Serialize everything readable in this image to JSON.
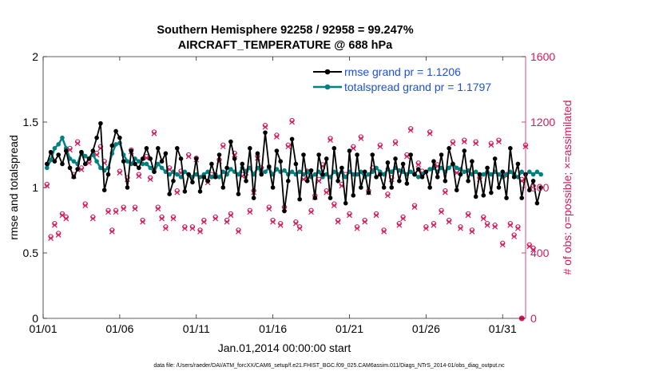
{
  "chart_data": {
    "type": "line",
    "title": "Southern Hemisphere 92258 / 92958 = 99.247%",
    "subtitle": "AIRCRAFT_TEMPERATURE @ 688 hPa",
    "xlabel": "Jan.01,2014 00:00:00 start",
    "ylabel_left": "rmse and totalspread",
    "ylabel_right": "# of obs: o=possible; ×=assimilated",
    "footnote": "data file: /Users/raeder/DAI/ATM_forcXX/CAM6_setup/f.e21.FHIST_BGC.f09_025.CAM6assim.011/Diags_NTrS_2014-01/obs_diag_output.nc",
    "x_ticks": [
      "01/01",
      "01/06",
      "01/11",
      "01/16",
      "01/21",
      "01/26",
      "01/31"
    ],
    "x_tick_days": [
      0,
      5,
      10,
      15,
      20,
      25,
      30
    ],
    "xlim": [
      0,
      31.5
    ],
    "ylim_left": [
      0,
      2
    ],
    "y_ticks_left": [
      "0",
      "0.5",
      "1",
      "1.5",
      "2"
    ],
    "ylim_right": [
      0,
      1600
    ],
    "y_ticks_right": [
      "0",
      "400",
      "800",
      "1200",
      "1600"
    ],
    "legend": {
      "location": "top-right",
      "entries": [
        "rmse grand pr = 1.1206",
        "totalspread grand pr = 1.1797"
      ]
    },
    "colors": {
      "rmse": "#000000",
      "spread": "#008080",
      "obs": "#d6195a",
      "legend_text": "#1f4fe0"
    },
    "x_step_days": 0.25,
    "series": [
      {
        "name": "rmse",
        "values": [
          1.18,
          1.27,
          1.2,
          1.25,
          1.18,
          1.28,
          1.15,
          1.08,
          1.14,
          1.27,
          1.18,
          1.22,
          1.28,
          1.38,
          1.49,
          0.98,
          1.1,
          1.32,
          1.43,
          1.38,
          1.2,
          1.0,
          1.28,
          1.18,
          1.15,
          1.22,
          1.3,
          1.22,
          1.12,
          1.3,
          1.2,
          1.26,
          0.95,
          1.05,
          1.3,
          1.22,
          0.97,
          1.1,
          1.04,
          1.22,
          0.97,
          1.08,
          1.05,
          1.18,
          1.08,
          1.25,
          1.0,
          1.15,
          1.35,
          1.22,
          0.95,
          1.18,
          1.05,
          1.3,
          0.92,
          1.26,
          1.1,
          1.42,
          1.16,
          1.0,
          1.28,
          1.2,
          0.82,
          1.05,
          1.37,
          1.18,
          0.91,
          1.25,
          1.05,
          1.13,
          0.92,
          1.25,
          1.1,
          1.22,
          0.92,
          1.3,
          1.05,
          1.15,
          0.88,
          1.28,
          0.94,
          1.25,
          1.0,
          1.12,
          0.96,
          1.25,
          1.08,
          1.1,
          1.0,
          1.19,
          1.0,
          1.22,
          1.05,
          1.18,
          1.03,
          1.25,
          1.1,
          1.14,
          1.08,
          1.12,
          1.0,
          1.2,
          1.08,
          1.25,
          1.05,
          1.3,
          1.18,
          0.98,
          1.1,
          1.28,
          1.05,
          1.2,
          0.93,
          1.1,
          0.94,
          1.15,
          0.96,
          1.22,
          1.0,
          1.12,
          0.92,
          1.3,
          1.08,
          1.18,
          0.92,
          1.1,
          0.98,
          1.05,
          0.88,
          1.0
        ]
      },
      {
        "name": "totalspread",
        "values": [
          1.15,
          1.21,
          1.3,
          1.33,
          1.38,
          1.3,
          1.22,
          1.2,
          1.18,
          1.27,
          1.24,
          1.22,
          1.25,
          1.2,
          1.15,
          1.13,
          1.15,
          1.26,
          1.33,
          1.34,
          1.25,
          1.2,
          1.18,
          1.22,
          1.2,
          1.18,
          1.18,
          1.15,
          1.12,
          1.18,
          1.15,
          1.12,
          1.1,
          1.12,
          1.1,
          1.08,
          1.12,
          1.1,
          1.08,
          1.1,
          1.08,
          1.1,
          1.12,
          1.08,
          1.1,
          1.08,
          1.12,
          1.1,
          1.14,
          1.12,
          1.1,
          1.15,
          1.12,
          1.15,
          1.1,
          1.15,
          1.12,
          1.12,
          1.15,
          1.1,
          1.14,
          1.12,
          1.13,
          1.1,
          1.12,
          1.1,
          1.12,
          1.1,
          1.12,
          1.08,
          1.1,
          1.12,
          1.08,
          1.1,
          1.08,
          1.12,
          1.1,
          1.12,
          1.08,
          1.12,
          1.1,
          1.1,
          1.12,
          1.08,
          1.1,
          1.12,
          1.15,
          1.12,
          1.1,
          1.14,
          1.12,
          1.15,
          1.13,
          1.12,
          1.1,
          1.12,
          1.1,
          1.08,
          1.1,
          1.12,
          1.14,
          1.15,
          1.12,
          1.15,
          1.12,
          1.15,
          1.18,
          1.15,
          1.14,
          1.12,
          1.13,
          1.1,
          1.12,
          1.1,
          1.1,
          1.12,
          1.1,
          1.12,
          1.1,
          1.08,
          1.1,
          1.12,
          1.1,
          1.08,
          1.12,
          1.1,
          1.12,
          1.1,
          1.12,
          1.1
        ]
      },
      {
        "name": "obs_possible",
        "axis": "right",
        "values": [
          820,
          500,
          580,
          520,
          640,
          620,
          1040,
          880,
          1080,
          920,
          700,
          960,
          620,
          1010,
          1050,
          960,
          660,
          540,
          660,
          900,
          680,
          860,
          1030,
          680,
          880,
          600,
          990,
          860,
          1140,
          680,
          620,
          560,
          920,
          620,
          780,
          900,
          560,
          1000,
          560,
          980,
          540,
          600,
          840,
          880,
          620,
          970,
          1060,
          600,
          640,
          1010,
          540,
          880,
          900,
          660,
          780,
          990,
          920,
          1180,
          680,
          600,
          1120,
          580,
          680,
          1060,
          1210,
          590,
          560,
          860,
          900,
          660,
          750,
          850,
          940,
          780,
          1100,
          700,
          600,
          820,
          880,
          640,
          1050,
          560,
          1110,
          600,
          780,
          920,
          640,
          1060,
          540,
          760,
          860,
          1080,
          580,
          620,
          1000,
          1160,
          690,
          950,
          900,
          560,
          1140,
          580,
          940,
          660,
          780,
          600,
          1080,
          900,
          560,
          1090,
          640,
          540,
          1080,
          860,
          620,
          580,
          1070,
          570,
          1090,
          460,
          880,
          580,
          510,
          560,
          850,
          1060,
          450,
          430
        ]
      },
      {
        "name": "obs_assimilated",
        "axis": "right",
        "values": [
          810,
          490,
          570,
          510,
          630,
          610,
          1030,
          870,
          1070,
          910,
          690,
          950,
          610,
          1000,
          1040,
          950,
          650,
          530,
          650,
          890,
          670,
          850,
          1020,
          670,
          870,
          590,
          980,
          850,
          1130,
          670,
          610,
          550,
          910,
          610,
          770,
          890,
          550,
          990,
          550,
          970,
          530,
          590,
          830,
          870,
          610,
          960,
          1050,
          590,
          630,
          1000,
          530,
          870,
          890,
          650,
          770,
          980,
          910,
          1170,
          670,
          590,
          1110,
          570,
          670,
          1050,
          1200,
          580,
          550,
          850,
          890,
          650,
          740,
          840,
          930,
          770,
          1090,
          690,
          590,
          810,
          870,
          630,
          1040,
          550,
          1100,
          590,
          770,
          910,
          630,
          1050,
          530,
          750,
          850,
          1070,
          570,
          610,
          990,
          1150,
          680,
          940,
          890,
          550,
          1130,
          570,
          930,
          650,
          770,
          590,
          1070,
          890,
          550,
          1080,
          630,
          530,
          1070,
          850,
          610,
          570,
          1060,
          560,
          1080,
          450,
          870,
          570,
          500,
          550,
          840,
          1050,
          440,
          420
        ]
      }
    ],
    "dropoff_point": {
      "x_day": 31.25,
      "value": 0
    }
  }
}
